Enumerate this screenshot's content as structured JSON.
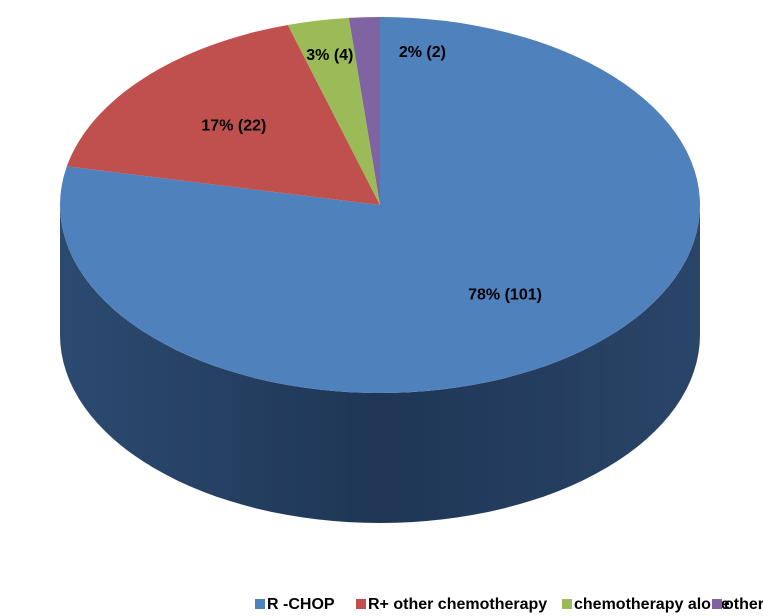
{
  "chart_data": {
    "type": "pie",
    "categories": [
      "R -CHOP",
      "R+ other chemotherapy",
      "chemotherapy alone",
      "other"
    ],
    "values": [
      101,
      22,
      4,
      2
    ],
    "value_labels": [
      "78% (101)",
      "17% (22)",
      "3% (4)",
      "2% (2)"
    ],
    "colors": [
      "#4f81bd",
      "#c0504d",
      "#9bbb59",
      "#8064a2"
    ],
    "legend": "bottom"
  }
}
